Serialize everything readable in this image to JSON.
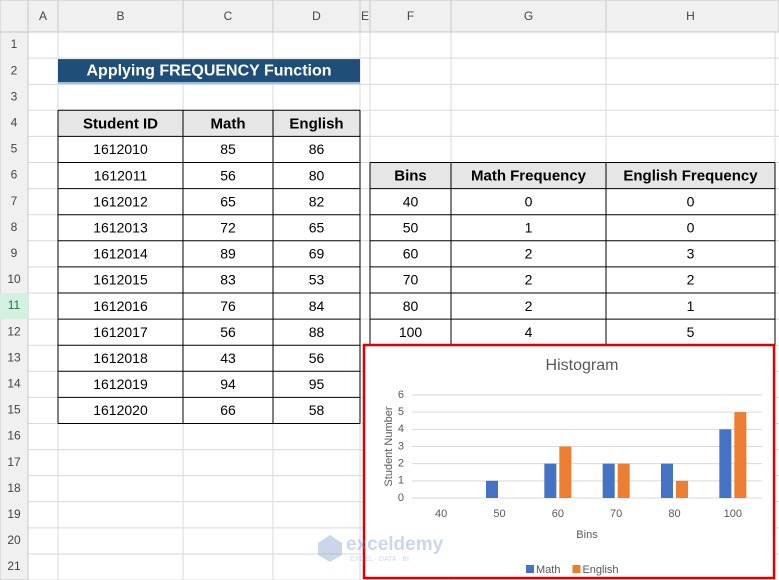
{
  "column_headers": [
    "A",
    "B",
    "C",
    "D",
    "E",
    "F",
    "G",
    "H"
  ],
  "row_numbers": [
    1,
    2,
    3,
    4,
    5,
    6,
    7,
    8,
    9,
    10,
    11,
    12,
    13,
    14,
    15,
    16,
    17,
    18,
    19,
    20,
    21
  ],
  "title": "Applying FREQUENCY Function",
  "students": {
    "headers": [
      "Student ID",
      "Math",
      "English"
    ],
    "rows": [
      [
        1612010,
        85,
        86
      ],
      [
        1612011,
        56,
        80
      ],
      [
        1612012,
        65,
        82
      ],
      [
        1612013,
        72,
        65
      ],
      [
        1612014,
        89,
        69
      ],
      [
        1612015,
        83,
        53
      ],
      [
        1612016,
        76,
        84
      ],
      [
        1612017,
        56,
        88
      ],
      [
        1612018,
        43,
        56
      ],
      [
        1612019,
        94,
        95
      ],
      [
        1612020,
        66,
        58
      ]
    ]
  },
  "frequency": {
    "headers": [
      "Bins",
      "Math Frequency",
      "English Frequency"
    ],
    "rows": [
      [
        40,
        0,
        0
      ],
      [
        50,
        1,
        0
      ],
      [
        60,
        2,
        3
      ],
      [
        70,
        2,
        2
      ],
      [
        80,
        2,
        1
      ],
      [
        100,
        4,
        5
      ]
    ]
  },
  "chart_data": {
    "type": "bar",
    "title": "Histogram",
    "x_label": "Bins",
    "y_label": "Student Number",
    "categories": [
      "40",
      "50",
      "60",
      "70",
      "80",
      "100"
    ],
    "series": [
      {
        "name": "Math",
        "color": "#4472c4",
        "values": [
          0,
          1,
          2,
          2,
          2,
          4
        ]
      },
      {
        "name": "English",
        "color": "#ed7d31",
        "values": [
          0,
          0,
          3,
          2,
          1,
          5
        ]
      }
    ],
    "ylim": [
      0,
      6
    ],
    "yticks": [
      0,
      1,
      2,
      3,
      4,
      5,
      6
    ],
    "grid": true,
    "legend": "bottom"
  },
  "watermark": {
    "name": "exceldemy",
    "tagline": "EXCEL · DATA · BI"
  }
}
